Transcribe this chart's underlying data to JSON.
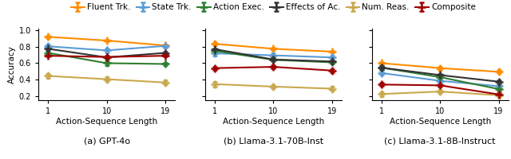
{
  "x_ticks": [
    1,
    10,
    19
  ],
  "x_label": "Action-Sequence Length",
  "y_label": "Accuracy",
  "ylim": [
    0.15,
    1.02
  ],
  "yticks": [
    0.2,
    0.4,
    0.6,
    0.8,
    1.0
  ],
  "series": [
    {
      "name": "Fluent Trk.",
      "color": "#FF8C00",
      "marker": "+",
      "lw": 1.5
    },
    {
      "name": "State Trk.",
      "color": "#5B9BD5",
      "marker": "+",
      "lw": 1.5
    },
    {
      "name": "Action Exec.",
      "color": "#2E7D32",
      "marker": "+",
      "lw": 1.5
    },
    {
      "name": "Effects of Ac.",
      "color": "#333333",
      "marker": "+",
      "lw": 1.5
    },
    {
      "name": "Num. Reas.",
      "color": "#C9A84C",
      "marker": "+",
      "lw": 1.5
    },
    {
      "name": "Composite",
      "color": "#A00000",
      "marker": "+",
      "lw": 1.5
    }
  ],
  "panels": [
    {
      "title": "(a) GPT-4o",
      "data": [
        {
          "y": [
            0.92,
            0.875,
            0.815
          ],
          "yerr": [
            0.014,
            0.013,
            0.015
          ]
        },
        {
          "y": [
            0.805,
            0.755,
            0.81
          ],
          "yerr": [
            0.022,
            0.028,
            0.018
          ]
        },
        {
          "y": [
            0.725,
            0.6,
            0.59
          ],
          "yerr": [
            0.018,
            0.023,
            0.018
          ]
        },
        {
          "y": [
            0.775,
            0.67,
            0.725
          ],
          "yerr": [
            0.013,
            0.013,
            0.013
          ]
        },
        {
          "y": [
            0.445,
            0.405,
            0.365
          ],
          "yerr": [
            0.023,
            0.023,
            0.023
          ]
        },
        {
          "y": [
            0.69,
            0.675,
            0.69
          ],
          "yerr": [
            0.013,
            0.013,
            0.013
          ]
        }
      ]
    },
    {
      "title": "(b) Llama-3.1-70B-Inst",
      "data": [
        {
          "y": [
            0.835,
            0.775,
            0.74
          ],
          "yerr": [
            0.018,
            0.014,
            0.014
          ]
        },
        {
          "y": [
            0.72,
            0.695,
            0.67
          ],
          "yerr": [
            0.028,
            0.023,
            0.018
          ]
        },
        {
          "y": [
            0.75,
            0.64,
            0.61
          ],
          "yerr": [
            0.018,
            0.018,
            0.018
          ]
        },
        {
          "y": [
            0.77,
            0.645,
            0.62
          ],
          "yerr": [
            0.013,
            0.013,
            0.013
          ]
        },
        {
          "y": [
            0.345,
            0.315,
            0.29
          ],
          "yerr": [
            0.028,
            0.023,
            0.023
          ]
        },
        {
          "y": [
            0.54,
            0.555,
            0.51
          ],
          "yerr": [
            0.018,
            0.018,
            0.018
          ]
        }
      ]
    },
    {
      "title": "(c) Llama-3.1-8B-Instruct",
      "data": [
        {
          "y": [
            0.6,
            0.54,
            0.495
          ],
          "yerr": [
            0.018,
            0.018,
            0.018
          ]
        },
        {
          "y": [
            0.48,
            0.385,
            0.32
          ],
          "yerr": [
            0.023,
            0.018,
            0.018
          ]
        },
        {
          "y": [
            0.545,
            0.43,
            0.285
          ],
          "yerr": [
            0.018,
            0.018,
            0.018
          ]
        },
        {
          "y": [
            0.545,
            0.455,
            0.375
          ],
          "yerr": [
            0.018,
            0.018,
            0.018
          ]
        },
        {
          "y": [
            0.225,
            0.255,
            0.21
          ],
          "yerr": [
            0.023,
            0.018,
            0.018
          ]
        },
        {
          "y": [
            0.34,
            0.33,
            0.22
          ],
          "yerr": [
            0.018,
            0.018,
            0.013
          ]
        }
      ]
    }
  ],
  "legend_fontsize": 7.5,
  "axis_fontsize": 7.5,
  "tick_fontsize": 7.0,
  "title_fontsize": 8.0,
  "marker_size": 7,
  "marker_ew": 1.8,
  "capsize": 2.5,
  "lw": 1.5
}
